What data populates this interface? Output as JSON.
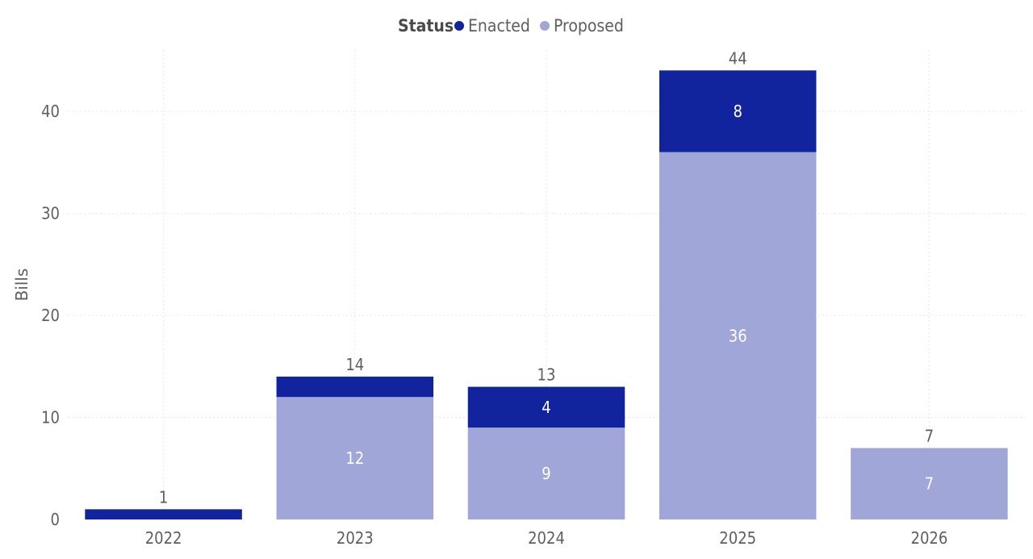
{
  "chart_data": {
    "type": "bar",
    "stacked": true,
    "categories": [
      "2022",
      "2023",
      "2024",
      "2025",
      "2026"
    ],
    "series": [
      {
        "name": "Proposed",
        "values": [
          0,
          12,
          9,
          36,
          7
        ],
        "color": "#a0a7d8"
      },
      {
        "name": "Enacted",
        "values": [
          1,
          2,
          4,
          8,
          0
        ],
        "color": "#12239e"
      }
    ],
    "segment_labels": {
      "Proposed": [
        "",
        "12",
        "9",
        "36",
        "7"
      ],
      "Enacted": [
        "",
        "",
        "4",
        "8",
        ""
      ]
    },
    "totals": [
      1,
      14,
      13,
      44,
      7
    ],
    "legend": {
      "title": "Status",
      "entries": [
        "Enacted",
        "Proposed"
      ],
      "position": "top-center"
    },
    "ylabel": "Bills",
    "xlabel": "",
    "ylim": [
      0,
      46
    ],
    "yticks": [
      0,
      10,
      20,
      30,
      40
    ],
    "grid": true
  }
}
